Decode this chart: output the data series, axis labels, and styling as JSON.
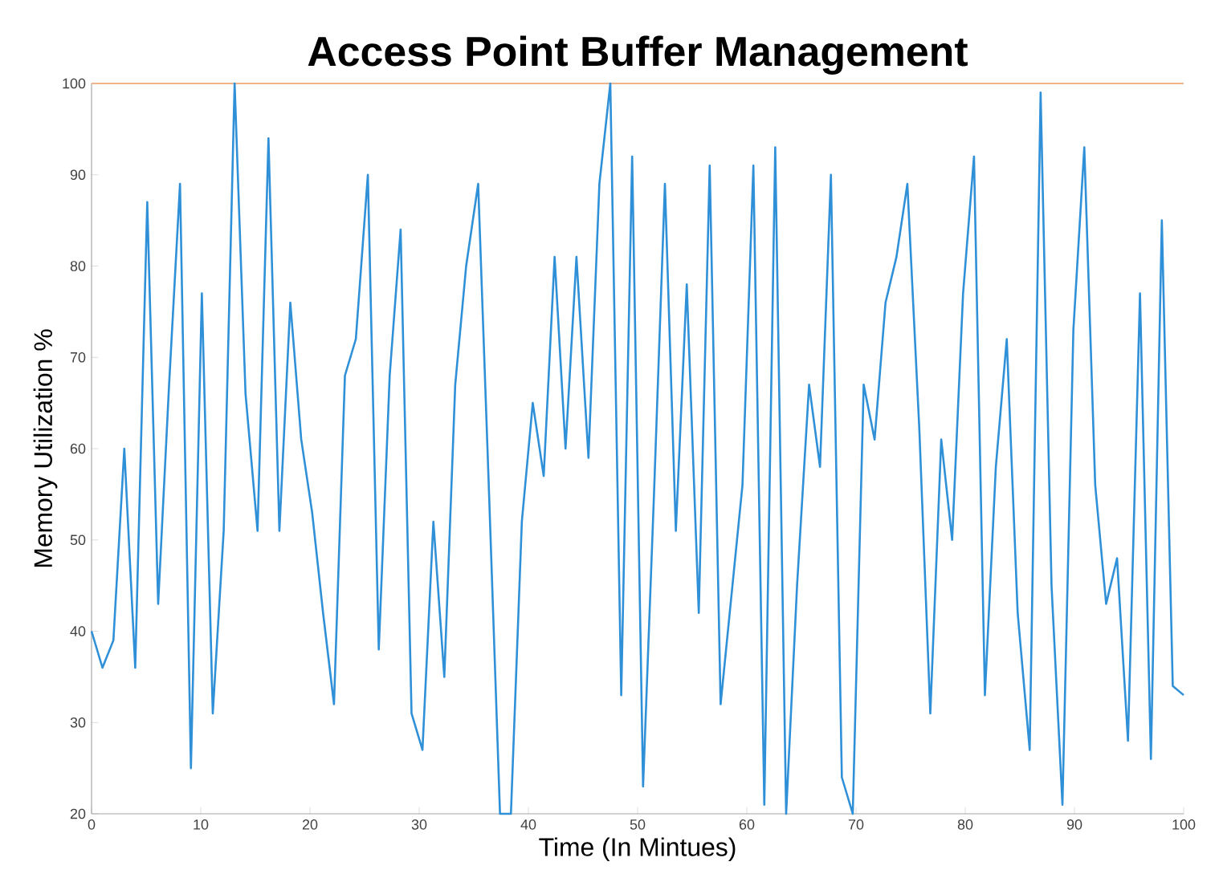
{
  "chart_data": {
    "type": "line",
    "title": "Access Point Buffer Management",
    "xlabel": "Time (In Mintues)",
    "ylabel": "Memory Utilization %",
    "xlim": [
      0,
      100
    ],
    "ylim": [
      20,
      100
    ],
    "xticks": [
      0,
      10,
      20,
      30,
      40,
      50,
      60,
      70,
      80,
      90,
      100
    ],
    "yticks": [
      20,
      30,
      40,
      50,
      60,
      70,
      80,
      90,
      100
    ],
    "grid": false,
    "marker": "none",
    "line_style": "solid",
    "ref_lines": [
      {
        "axis": "y",
        "value": 100,
        "color": "#f0b48c"
      }
    ],
    "series": [
      {
        "color": "#2f90d8",
        "x": [
          0,
          1,
          2,
          3,
          4,
          5.1,
          6.1,
          7.1,
          8.1,
          9.1,
          10.1,
          11.1,
          12.1,
          13.1,
          14.1,
          15.2,
          16.2,
          17.2,
          18.2,
          19.2,
          20.2,
          21.2,
          22.2,
          23.2,
          24.2,
          25.3,
          26.3,
          27.3,
          28.3,
          29.3,
          30.3,
          31.3,
          32.3,
          33.3,
          34.3,
          35.4,
          36.4,
          37.4,
          38.4,
          39.4,
          40.4,
          41.4,
          42.4,
          43.4,
          44.4,
          45.5,
          46.5,
          47.5,
          48.5,
          49.5,
          50.5,
          51.5,
          52.5,
          53.5,
          54.5,
          55.6,
          56.6,
          57.6,
          58.6,
          59.6,
          60.6,
          61.6,
          62.6,
          63.6,
          64.6,
          65.7,
          66.7,
          67.7,
          68.7,
          69.7,
          70.7,
          71.7,
          72.7,
          73.7,
          74.7,
          75.8,
          76.8,
          77.8,
          78.8,
          79.8,
          80.8,
          81.8,
          82.8,
          83.8,
          84.8,
          85.9,
          86.9,
          87.9,
          88.9,
          89.9,
          90.9,
          91.9,
          92.9,
          93.9,
          94.9,
          96,
          97,
          98,
          99,
          100
        ],
        "values": [
          40,
          36,
          39,
          60,
          36,
          87,
          43,
          67,
          89,
          25,
          77,
          31,
          51,
          100,
          66,
          51,
          94,
          51,
          76,
          61,
          53,
          42,
          32,
          68,
          72,
          90,
          38,
          68,
          84,
          31,
          27,
          52,
          35,
          67,
          80,
          89,
          55,
          20,
          20,
          52,
          65,
          57,
          81,
          60,
          81,
          59,
          89,
          100,
          33,
          92,
          23,
          55,
          89,
          51,
          78,
          42,
          91,
          32,
          44,
          56,
          91,
          21,
          93,
          20,
          45,
          67,
          58,
          90,
          24,
          20,
          67,
          61,
          76,
          81,
          89,
          62,
          31,
          61,
          50,
          77,
          92,
          33,
          58,
          72,
          42,
          27,
          99,
          45,
          21,
          73,
          93,
          56,
          43,
          48,
          28,
          77,
          26,
          85,
          34,
          33
        ]
      }
    ]
  }
}
